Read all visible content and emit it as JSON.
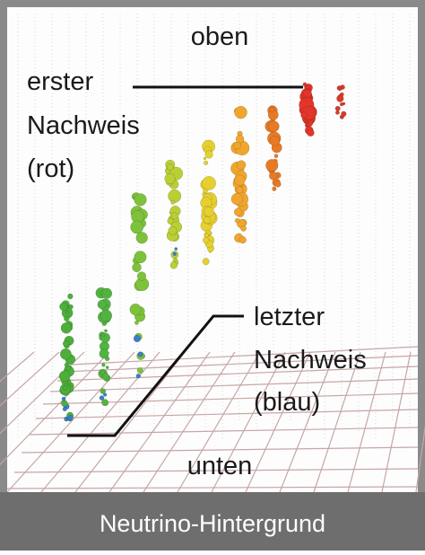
{
  "labels": {
    "top": "oben",
    "first_detection": [
      "erster",
      "Nachweis",
      "(rot)"
    ],
    "last_detection": [
      "letzter",
      "Nachweis",
      "(blau)"
    ],
    "bottom": "unten"
  },
  "caption": "Neutrino-Hintergrund"
}
